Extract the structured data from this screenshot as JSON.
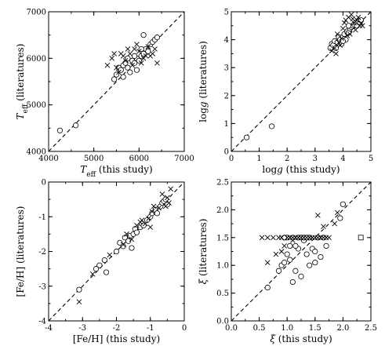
{
  "chart_data": [
    {
      "id": "teff",
      "type": "scatter",
      "xlabel": {
        "base": "T",
        "sub": "eff",
        "suffix": " (this study)"
      },
      "ylabel": {
        "base": "T",
        "sub": "eff",
        "suffix": " (literatures)"
      },
      "xlim": [
        4000,
        7000
      ],
      "ylim": [
        4000,
        7000
      ],
      "xticks": [
        4000,
        5000,
        6000,
        7000
      ],
      "yticks": [
        4000,
        5000,
        6000,
        7000
      ],
      "xminor": 500,
      "yminor": 500,
      "diagonal": true,
      "series": [
        {
          "marker": "circle",
          "points": [
            [
              4250,
              4450
            ],
            [
              4600,
              4560
            ],
            [
              5450,
              5550
            ],
            [
              5500,
              5650
            ],
            [
              5550,
              5800
            ],
            [
              5600,
              5750
            ],
            [
              5650,
              5850
            ],
            [
              5700,
              5900
            ],
            [
              5750,
              5800
            ],
            [
              5800,
              5700
            ],
            [
              5850,
              5950
            ],
            [
              5900,
              5900
            ],
            [
              5950,
              6000
            ],
            [
              6000,
              5950
            ],
            [
              6050,
              6050
            ],
            [
              6100,
              6100
            ],
            [
              6150,
              6200
            ],
            [
              6200,
              6150
            ],
            [
              6250,
              6300
            ],
            [
              6300,
              6350
            ],
            [
              6100,
              6500
            ],
            [
              6350,
              6400
            ],
            [
              5900,
              6050
            ],
            [
              5750,
              6000
            ],
            [
              6050,
              6200
            ],
            [
              6400,
              6450
            ],
            [
              5650,
              5600
            ],
            [
              5950,
              5750
            ]
          ]
        },
        {
          "marker": "cross",
          "points": [
            [
              5300,
              5850
            ],
            [
              5400,
              6000
            ],
            [
              5500,
              5800
            ],
            [
              5600,
              6100
            ],
            [
              5700,
              5950
            ],
            [
              5800,
              6100
            ],
            [
              5900,
              6200
            ],
            [
              6000,
              6150
            ],
            [
              6100,
              6000
            ],
            [
              6200,
              6250
            ],
            [
              6300,
              6100
            ],
            [
              6400,
              5900
            ],
            [
              5650,
              6050
            ],
            [
              5550,
              5700
            ],
            [
              5750,
              6200
            ],
            [
              6150,
              6050
            ],
            [
              6050,
              5900
            ],
            [
              5850,
              5850
            ],
            [
              6250,
              6050
            ],
            [
              5450,
              6100
            ],
            [
              6350,
              6200
            ],
            [
              5950,
              6300
            ]
          ]
        }
      ]
    },
    {
      "id": "logg",
      "type": "scatter",
      "xlabel": {
        "base": "log",
        "italic": "g",
        "suffix": " (this study)"
      },
      "ylabel": {
        "base": "log",
        "italic": "g",
        "suffix": " (literatures)"
      },
      "xlim": [
        0,
        5
      ],
      "ylim": [
        0,
        5
      ],
      "xticks": [
        0,
        1,
        2,
        3,
        4,
        5
      ],
      "yticks": [
        0,
        1,
        2,
        3,
        4,
        5
      ],
      "xminor": 0.5,
      "yminor": 0.5,
      "diagonal": true,
      "series": [
        {
          "marker": "circle",
          "points": [
            [
              0.55,
              0.5
            ],
            [
              1.45,
              0.9
            ],
            [
              3.55,
              3.7
            ],
            [
              3.6,
              3.85
            ],
            [
              3.65,
              3.8
            ],
            [
              3.7,
              3.95
            ],
            [
              3.8,
              3.9
            ],
            [
              3.85,
              4.1
            ],
            [
              3.9,
              4.0
            ],
            [
              3.95,
              3.85
            ],
            [
              4.0,
              4.1
            ],
            [
              4.05,
              4.2
            ],
            [
              4.1,
              4.0
            ],
            [
              4.15,
              4.3
            ],
            [
              4.2,
              4.25
            ],
            [
              4.25,
              4.4
            ],
            [
              4.3,
              4.45
            ],
            [
              4.35,
              4.5
            ],
            [
              4.4,
              4.55
            ],
            [
              4.45,
              4.6
            ],
            [
              4.5,
              4.5
            ],
            [
              4.55,
              4.65
            ],
            [
              4.6,
              4.6
            ],
            [
              4.65,
              4.7
            ],
            [
              3.75,
              3.7
            ],
            [
              4.0,
              3.95
            ],
            [
              4.2,
              4.5
            ]
          ]
        },
        {
          "marker": "cross",
          "points": [
            [
              3.6,
              3.6
            ],
            [
              3.7,
              3.7
            ],
            [
              3.8,
              4.2
            ],
            [
              3.9,
              3.8
            ],
            [
              4.0,
              4.4
            ],
            [
              4.05,
              4.6
            ],
            [
              4.1,
              4.7
            ],
            [
              4.2,
              4.8
            ],
            [
              4.3,
              4.9
            ],
            [
              4.35,
              4.75
            ],
            [
              4.4,
              4.6
            ],
            [
              4.5,
              4.7
            ],
            [
              4.55,
              4.8
            ],
            [
              4.6,
              4.5
            ],
            [
              4.65,
              4.6
            ],
            [
              3.85,
              3.9
            ],
            [
              3.95,
              4.05
            ],
            [
              4.15,
              4.15
            ],
            [
              4.25,
              4.2
            ],
            [
              4.45,
              4.35
            ],
            [
              3.75,
              3.5
            ],
            [
              4.7,
              4.5
            ]
          ]
        }
      ]
    },
    {
      "id": "feh",
      "type": "scatter",
      "xlabel": {
        "base": "[Fe/H]",
        "suffix": " (this study)"
      },
      "ylabel": {
        "base": "[Fe/H]",
        "suffix": " (literatures)"
      },
      "xlim": [
        -4,
        0
      ],
      "ylim": [
        -4,
        0
      ],
      "xticks": [
        -4,
        -3,
        -2,
        -1,
        0
      ],
      "yticks": [
        -4,
        -3,
        -2,
        -1,
        0
      ],
      "xminor": 0.5,
      "yminor": 0.5,
      "diagonal": true,
      "series": [
        {
          "marker": "circle",
          "points": [
            [
              -3.1,
              -3.1
            ],
            [
              -2.6,
              -2.5
            ],
            [
              -2.5,
              -2.4
            ],
            [
              -2.35,
              -2.25
            ],
            [
              -2.0,
              -2.0
            ],
            [
              -1.9,
              -1.75
            ],
            [
              -1.8,
              -1.85
            ],
            [
              -1.75,
              -1.6
            ],
            [
              -1.65,
              -1.7
            ],
            [
              -1.6,
              -1.55
            ],
            [
              -1.5,
              -1.5
            ],
            [
              -1.45,
              -1.35
            ],
            [
              -1.4,
              -1.45
            ],
            [
              -1.3,
              -1.3
            ],
            [
              -1.25,
              -1.2
            ],
            [
              -1.2,
              -1.25
            ],
            [
              -1.1,
              -1.1
            ],
            [
              -1.0,
              -1.0
            ],
            [
              -0.95,
              -0.9
            ],
            [
              -0.85,
              -0.8
            ],
            [
              -0.8,
              -0.9
            ],
            [
              -0.7,
              -0.7
            ],
            [
              -0.65,
              -0.6
            ],
            [
              -0.6,
              -0.55
            ],
            [
              -0.55,
              -0.5
            ],
            [
              -0.5,
              -0.65
            ],
            [
              -1.55,
              -1.9
            ],
            [
              -2.3,
              -2.6
            ]
          ]
        },
        {
          "marker": "cross",
          "points": [
            [
              -3.1,
              -3.45
            ],
            [
              -2.7,
              -2.65
            ],
            [
              -2.2,
              -2.1
            ],
            [
              -1.8,
              -1.8
            ],
            [
              -1.7,
              -1.5
            ],
            [
              -1.55,
              -1.65
            ],
            [
              -1.4,
              -1.25
            ],
            [
              -1.3,
              -1.15
            ],
            [
              -1.15,
              -1.2
            ],
            [
              -1.05,
              -1.05
            ],
            [
              -0.95,
              -0.85
            ],
            [
              -0.9,
              -0.7
            ],
            [
              -0.75,
              -0.75
            ],
            [
              -0.65,
              -0.35
            ],
            [
              -0.5,
              -0.45
            ],
            [
              -0.45,
              -0.6
            ],
            [
              -0.4,
              -0.2
            ],
            [
              -1.0,
              -1.3
            ],
            [
              -1.25,
              -1.1
            ],
            [
              -0.55,
              -0.7
            ]
          ]
        }
      ]
    },
    {
      "id": "xi",
      "type": "scatter",
      "xlabel": {
        "base": "ξ",
        "italic_base": true,
        "suffix": " (this study)"
      },
      "ylabel": {
        "base": "ξ",
        "italic_base": true,
        "suffix": " (literatures)"
      },
      "xlim": [
        0,
        2.5
      ],
      "ylim": [
        0,
        2.5
      ],
      "xticks": [
        0.0,
        0.5,
        1.0,
        1.5,
        2.0,
        2.5
      ],
      "yticks": [
        0.0,
        0.5,
        1.0,
        1.5,
        2.0,
        2.5
      ],
      "xminor": 0.25,
      "yminor": 0.25,
      "diagonal": true,
      "series": [
        {
          "marker": "circle",
          "points": [
            [
              0.65,
              0.6
            ],
            [
              0.85,
              0.9
            ],
            [
              0.9,
              1.0
            ],
            [
              0.95,
              1.05
            ],
            [
              1.0,
              1.2
            ],
            [
              1.05,
              1.1
            ],
            [
              1.1,
              0.7
            ],
            [
              1.15,
              0.9
            ],
            [
              1.2,
              1.5
            ],
            [
              1.25,
              1.5
            ],
            [
              1.3,
              1.45
            ],
            [
              1.35,
              1.2
            ],
            [
              1.4,
              1.0
            ],
            [
              1.45,
              1.3
            ],
            [
              1.5,
              1.25
            ],
            [
              1.55,
              1.5
            ],
            [
              1.6,
              1.15
            ],
            [
              1.65,
              1.5
            ],
            [
              1.7,
              1.35
            ],
            [
              1.25,
              0.8
            ],
            [
              1.0,
              1.5
            ],
            [
              1.1,
              1.5
            ],
            [
              1.3,
              1.5
            ],
            [
              1.4,
              1.5
            ],
            [
              1.2,
              1.3
            ],
            [
              0.95,
              1.5
            ],
            [
              1.15,
              1.35
            ],
            [
              2.0,
              2.1
            ],
            [
              1.95,
              1.85
            ],
            [
              1.5,
              1.05
            ],
            [
              1.05,
              1.35
            ],
            [
              1.35,
              1.5
            ]
          ]
        },
        {
          "marker": "cross",
          "points": [
            [
              0.55,
              1.5
            ],
            [
              0.65,
              1.5
            ],
            [
              0.75,
              1.5
            ],
            [
              0.8,
              1.2
            ],
            [
              0.85,
              1.5
            ],
            [
              0.9,
              1.5
            ],
            [
              0.95,
              1.35
            ],
            [
              1.0,
              1.5
            ],
            [
              1.05,
              1.5
            ],
            [
              1.1,
              1.5
            ],
            [
              1.15,
              1.5
            ],
            [
              1.2,
              1.5
            ],
            [
              1.25,
              1.5
            ],
            [
              1.3,
              1.5
            ],
            [
              1.35,
              1.5
            ],
            [
              1.4,
              1.5
            ],
            [
              1.45,
              1.5
            ],
            [
              1.5,
              1.5
            ],
            [
              1.55,
              1.5
            ],
            [
              1.6,
              1.5
            ],
            [
              1.65,
              1.5
            ],
            [
              1.7,
              1.5
            ],
            [
              1.75,
              1.5
            ],
            [
              1.55,
              1.9
            ],
            [
              1.65,
              1.7
            ],
            [
              1.85,
              1.75
            ],
            [
              1.9,
              1.95
            ],
            [
              0.65,
              1.05
            ],
            [
              0.9,
              1.25
            ],
            [
              1.1,
              1.45
            ]
          ]
        },
        {
          "marker": "square",
          "points": [
            [
              2.32,
              1.5
            ]
          ]
        }
      ]
    }
  ]
}
